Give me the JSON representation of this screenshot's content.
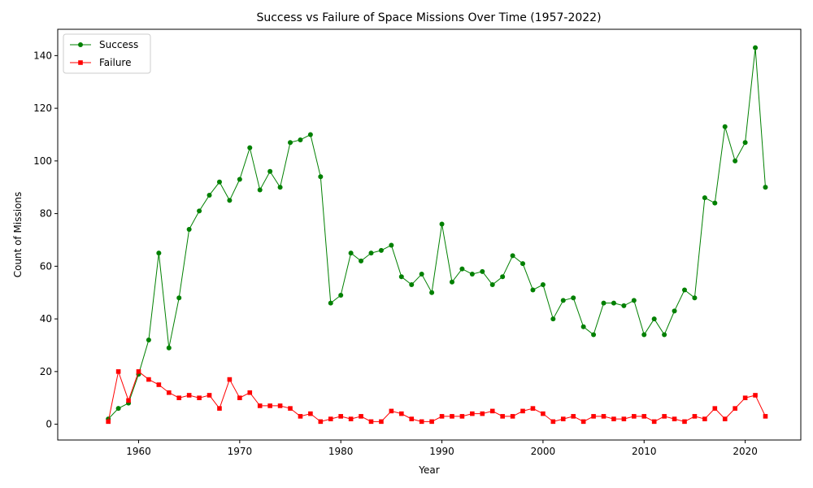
{
  "chart_data": {
    "type": "line",
    "title": "Success vs Failure of Space Missions Over Time (1957-2022)",
    "xlabel": "Year",
    "ylabel": "Count of Missions",
    "xlim": [
      1952,
      2025.5
    ],
    "ylim": [
      -6,
      150
    ],
    "xticks": [
      1960,
      1970,
      1980,
      1990,
      2000,
      2010,
      2020
    ],
    "yticks": [
      0,
      20,
      40,
      60,
      80,
      100,
      120,
      140
    ],
    "grid": false,
    "legend_position": "upper-left",
    "x": [
      1957,
      1958,
      1959,
      1960,
      1961,
      1962,
      1963,
      1964,
      1965,
      1966,
      1967,
      1968,
      1969,
      1970,
      1971,
      1972,
      1973,
      1974,
      1975,
      1976,
      1977,
      1978,
      1979,
      1980,
      1981,
      1982,
      1983,
      1984,
      1985,
      1986,
      1987,
      1988,
      1989,
      1990,
      1991,
      1992,
      1993,
      1994,
      1995,
      1996,
      1997,
      1998,
      1999,
      2000,
      2001,
      2002,
      2003,
      2004,
      2005,
      2006,
      2007,
      2008,
      2009,
      2010,
      2011,
      2012,
      2013,
      2014,
      2015,
      2016,
      2017,
      2018,
      2019,
      2020,
      2021,
      2022
    ],
    "series": [
      {
        "name": "Success",
        "color": "#008000",
        "marker": "circle",
        "values": [
          2,
          6,
          8,
          19,
          32,
          65,
          29,
          48,
          74,
          81,
          87,
          92,
          85,
          93,
          105,
          89,
          96,
          90,
          107,
          108,
          110,
          94,
          46,
          49,
          65,
          62,
          65,
          66,
          68,
          56,
          53,
          57,
          50,
          76,
          54,
          59,
          57,
          58,
          53,
          56,
          64,
          61,
          51,
          53,
          40,
          47,
          48,
          37,
          34,
          46,
          46,
          45,
          47,
          34,
          40,
          34,
          43,
          51,
          48,
          86,
          84,
          113,
          100,
          107,
          143,
          90
        ]
      },
      {
        "name": "Failure",
        "color": "#ff0000",
        "marker": "square",
        "values": [
          1,
          20,
          9,
          20,
          17,
          15,
          12,
          10,
          11,
          10,
          11,
          6,
          17,
          10,
          12,
          7,
          7,
          7,
          6,
          3,
          4,
          1,
          2,
          3,
          2,
          3,
          1,
          1,
          5,
          4,
          2,
          1,
          1,
          3,
          3,
          3,
          4,
          4,
          5,
          3,
          3,
          5,
          6,
          4,
          1,
          2,
          3,
          1,
          3,
          3,
          2,
          2,
          3,
          3,
          1,
          3,
          2,
          1,
          3,
          2,
          6,
          2,
          6,
          10,
          11,
          3
        ]
      }
    ]
  }
}
